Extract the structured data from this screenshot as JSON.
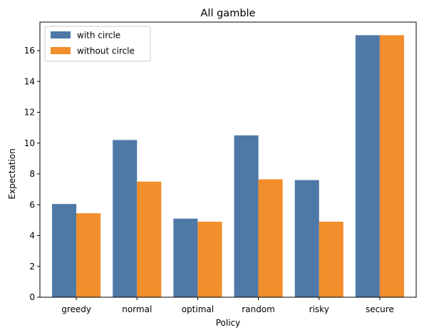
{
  "chart_data": {
    "type": "bar",
    "title": "All gamble",
    "xlabel": "Policy",
    "ylabel": "Expectation",
    "categories": [
      "greedy",
      "normal",
      "optimal",
      "random",
      "risky",
      "secure"
    ],
    "series": [
      {
        "name": "with circle",
        "color": "#4e79a7",
        "values": [
          6.05,
          10.2,
          5.1,
          10.5,
          7.6,
          17.0
        ]
      },
      {
        "name": "without circle",
        "color": "#f28e2b",
        "values": [
          5.45,
          7.5,
          4.9,
          7.65,
          4.9,
          17.0
        ]
      }
    ],
    "ylim": [
      0,
      17.85
    ],
    "yticks": [
      0,
      2,
      4,
      6,
      8,
      10,
      12,
      14,
      16
    ],
    "grid": false,
    "legend": "top-left"
  }
}
